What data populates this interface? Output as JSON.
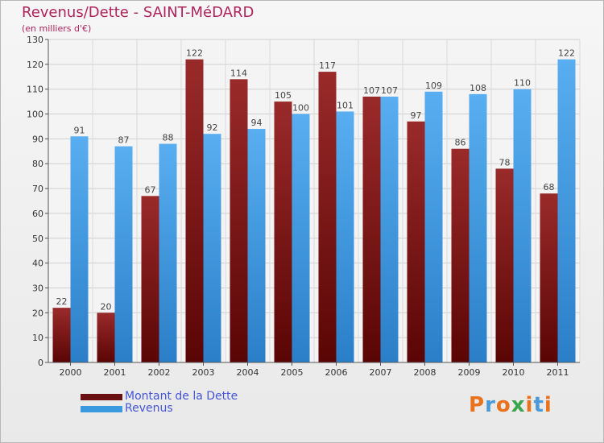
{
  "header": {
    "title": "Revenus/Dette - SAINT-MéDARD",
    "subtitle": "(en milliers d'€)"
  },
  "chart_data": {
    "type": "bar",
    "title": "Revenus/Dette - SAINT-MéDARD",
    "ylabel": "(en milliers d'€)",
    "xlabel": "",
    "categories": [
      "2000",
      "2001",
      "2002",
      "2003",
      "2004",
      "2005",
      "2006",
      "2007",
      "2008",
      "2009",
      "2010",
      "2011"
    ],
    "series": [
      {
        "name": "Montant de la Dette",
        "color": "#8b1a1a",
        "values": [
          22,
          20,
          67,
          122,
          114,
          105,
          117,
          107,
          97,
          86,
          78,
          68
        ]
      },
      {
        "name": "Revenus",
        "color": "#3a9ae0",
        "values": [
          91,
          87,
          88,
          92,
          94,
          100,
          101,
          107,
          109,
          108,
          110,
          122
        ]
      }
    ],
    "ylim": [
      0,
      130
    ],
    "yticks": [
      0,
      10,
      20,
      30,
      40,
      50,
      60,
      70,
      80,
      90,
      100,
      110,
      120,
      130
    ],
    "grid": true,
    "legend": "bottom-left"
  },
  "legend": {
    "items": [
      {
        "label": "Montant de la Dette",
        "color": "#6b1010"
      },
      {
        "label": "Revenus",
        "color": "#3a9ae0"
      }
    ]
  },
  "logo": {
    "text": "Proxiti",
    "letters": [
      {
        "char": "P",
        "color": "#e8731c"
      },
      {
        "char": "r",
        "color": "#4b9ad8"
      },
      {
        "char": "o",
        "color": "#e8731c"
      },
      {
        "char": "x",
        "color": "#3aa54a"
      },
      {
        "char": "i",
        "color": "#e8731c"
      },
      {
        "char": "t",
        "color": "#4b9ad8"
      },
      {
        "char": "i",
        "color": "#e8731c"
      }
    ]
  }
}
